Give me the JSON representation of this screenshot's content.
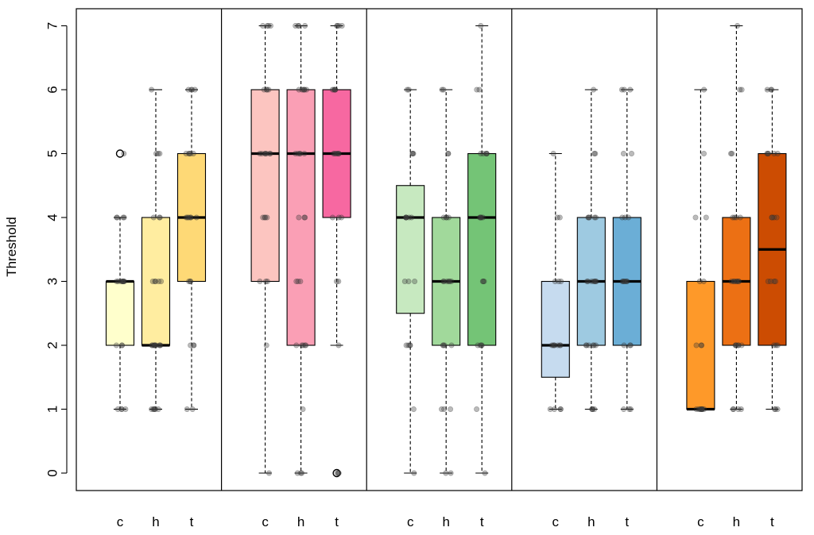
{
  "chart_data": {
    "type": "box",
    "ylabel": "Threshold",
    "xlabel": "",
    "title": "",
    "ylim": [
      -0.3,
      7.3
    ],
    "yticks": [
      "0",
      "1",
      "2",
      "3",
      "4",
      "5",
      "6",
      "7"
    ],
    "grid": false,
    "legend": "none",
    "categories": [
      "c",
      "h",
      "t"
    ],
    "groups": [
      {
        "boxes": [
          {
            "label": "c",
            "color": "#FFFFCC",
            "min": 1,
            "q1": 2,
            "median": 3,
            "q3": 3,
            "max": 4,
            "outliers": [
              5
            ],
            "points": [
              1,
              1,
              1,
              1,
              2,
              2,
              2,
              3,
              3,
              3,
              3,
              3,
              3,
              3,
              3,
              4,
              4,
              4,
              4,
              5
            ]
          },
          {
            "label": "h",
            "color": "#FFEDA0",
            "min": 1,
            "q1": 2,
            "median": 2,
            "q3": 4,
            "max": 6,
            "outliers": [],
            "points": [
              1,
              1,
              1,
              1,
              1,
              1,
              2,
              2,
              2,
              2,
              2,
              2,
              2,
              2,
              2,
              2,
              3,
              3,
              3,
              3,
              3,
              4,
              4,
              4,
              5,
              5,
              5,
              6
            ]
          },
          {
            "label": "t",
            "color": "#FED976",
            "min": 1,
            "q1": 3,
            "median": 4,
            "q3": 5,
            "max": 6,
            "outliers": [],
            "points": [
              1,
              1,
              2,
              2,
              2,
              3,
              3,
              3,
              4,
              4,
              4,
              4,
              4,
              4,
              5,
              5,
              5,
              5,
              5,
              6,
              6,
              6,
              6
            ]
          }
        ]
      },
      {
        "boxes": [
          {
            "label": "c",
            "color": "#FCC5C0",
            "min": 0,
            "q1": 3,
            "median": 5,
            "q3": 6,
            "max": 7,
            "outliers": [],
            "points": [
              0,
              2,
              3,
              3,
              3,
              4,
              4,
              4,
              4,
              5,
              5,
              5,
              5,
              5,
              5,
              5,
              6,
              6,
              6,
              6,
              7,
              7,
              7,
              7
            ]
          },
          {
            "label": "h",
            "color": "#FA9FB5",
            "min": 0,
            "q1": 2,
            "median": 5,
            "q3": 6,
            "max": 7,
            "outliers": [],
            "points": [
              0,
              0,
              0,
              1,
              2,
              2,
              2,
              2,
              2,
              3,
              3,
              3,
              4,
              4,
              4,
              5,
              5,
              5,
              5,
              5,
              6,
              6,
              6,
              6,
              6,
              6,
              7,
              7,
              7,
              7
            ]
          },
          {
            "label": "t",
            "color": "#F768A1",
            "min": 2,
            "q1": 4,
            "median": 5,
            "q3": 6,
            "max": 7,
            "outliers": [
              0
            ],
            "points": [
              0,
              0,
              0,
              2,
              3,
              3,
              4,
              4,
              4,
              5,
              5,
              5,
              5,
              5,
              5,
              6,
              6,
              6,
              6,
              6,
              7,
              7,
              7,
              7
            ]
          }
        ]
      },
      {
        "boxes": [
          {
            "label": "c",
            "color": "#C7E9C0",
            "min": 0,
            "q1": 2.5,
            "median": 4,
            "q3": 4.5,
            "max": 6,
            "outliers": [],
            "points": [
              0,
              1,
              2,
              2,
              2,
              2,
              3,
              3,
              3,
              4,
              4,
              4,
              4,
              4,
              4,
              5,
              5,
              5,
              6,
              6
            ]
          },
          {
            "label": "h",
            "color": "#A1D99B",
            "min": 0,
            "q1": 2,
            "median": 3,
            "q3": 4,
            "max": 6,
            "outliers": [],
            "points": [
              0,
              0,
              1,
              1,
              1,
              2,
              2,
              2,
              2,
              3,
              3,
              3,
              3,
              3,
              3,
              4,
              4,
              4,
              4,
              5,
              5,
              6,
              6
            ]
          },
          {
            "label": "t",
            "color": "#74C476",
            "min": 0,
            "q1": 2,
            "median": 4,
            "q3": 5,
            "max": 7,
            "outliers": [],
            "points": [
              0,
              1,
              2,
              2,
              2,
              2,
              3,
              3,
              3,
              4,
              4,
              4,
              4,
              4,
              5,
              5,
              5,
              5,
              5,
              6,
              6,
              7
            ]
          }
        ]
      },
      {
        "boxes": [
          {
            "label": "c",
            "color": "#C6DBEF",
            "min": 1,
            "q1": 1.5,
            "median": 2,
            "q3": 3,
            "max": 5,
            "outliers": [],
            "points": [
              1,
              1,
              1,
              1,
              2,
              2,
              2,
              2,
              2,
              2,
              2,
              3,
              3,
              3,
              4,
              4,
              5
            ]
          },
          {
            "label": "h",
            "color": "#9ECAE1",
            "min": 1,
            "q1": 2,
            "median": 3,
            "q3": 4,
            "max": 6,
            "outliers": [],
            "points": [
              1,
              1,
              1,
              1,
              2,
              2,
              2,
              2,
              2,
              2,
              3,
              3,
              3,
              3,
              3,
              3,
              3,
              4,
              4,
              4,
              4,
              4,
              5,
              5,
              6
            ]
          },
          {
            "label": "t",
            "color": "#6BAED6",
            "min": 1,
            "q1": 2,
            "median": 3,
            "q3": 4,
            "max": 6,
            "outliers": [],
            "points": [
              1,
              1,
              1,
              2,
              2,
              2,
              3,
              3,
              3,
              3,
              3,
              3,
              4,
              4,
              4,
              5,
              5,
              6,
              6,
              6
            ]
          }
        ]
      },
      {
        "boxes": [
          {
            "label": "c",
            "color": "#FE9929",
            "min": 1,
            "q1": 1,
            "median": 1,
            "q3": 3,
            "max": 6,
            "outliers": [],
            "points": [
              1,
              1,
              1,
              1,
              1,
              1,
              1,
              1,
              1,
              2,
              2,
              2,
              3,
              3,
              4,
              4,
              5,
              6
            ]
          },
          {
            "label": "h",
            "color": "#EC7014",
            "min": 1,
            "q1": 2,
            "median": 3,
            "q3": 4,
            "max": 7,
            "outliers": [],
            "points": [
              1,
              1,
              1,
              1,
              2,
              2,
              2,
              2,
              2,
              2,
              3,
              3,
              3,
              3,
              3,
              3,
              3,
              4,
              4,
              4,
              4,
              5,
              5,
              6,
              6,
              7
            ]
          },
          {
            "label": "t",
            "color": "#CC4C02",
            "min": 1,
            "q1": 2,
            "median": 3.5,
            "q3": 5,
            "max": 6,
            "outliers": [],
            "points": [
              1,
              1,
              1,
              2,
              2,
              2,
              3,
              3,
              3,
              3,
              4,
              4,
              4,
              4,
              5,
              5,
              5,
              5,
              5,
              6,
              6,
              6
            ]
          }
        ]
      }
    ]
  }
}
